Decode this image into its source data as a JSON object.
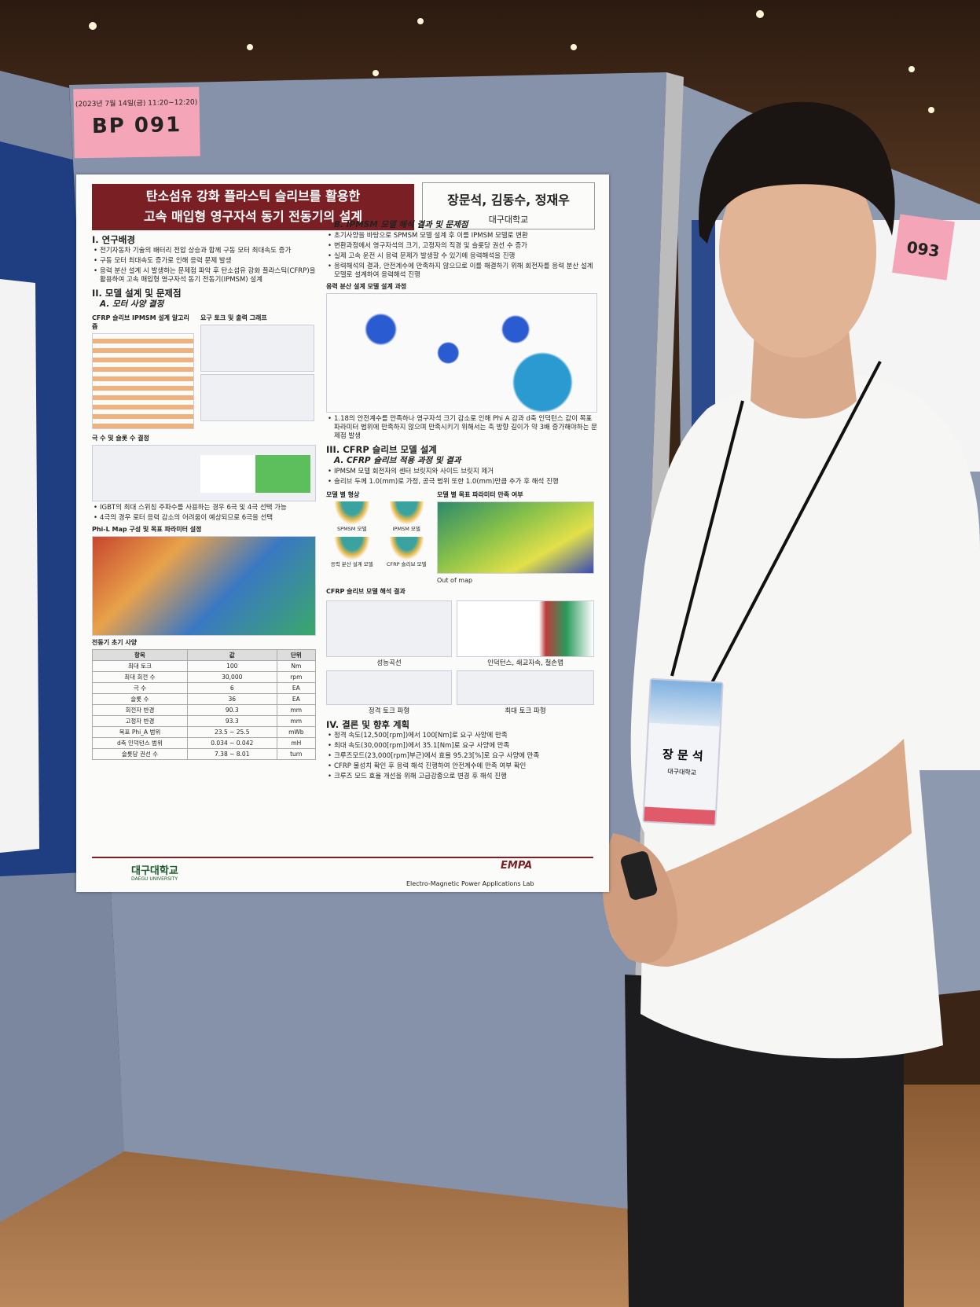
{
  "signs": {
    "left": {
      "date": "(2023년 7월 14일(금) 11:20~12:20)",
      "code": "BP 091"
    },
    "right": {
      "code": "093"
    }
  },
  "poster": {
    "title": [
      "탄소섬유 강화 플라스틱 슬리브를 활용한",
      "고속 매입형 영구자석 동기 전동기의 설계"
    ],
    "authors": "장문석, 김동수, 정재우",
    "affiliation": "대구대학교",
    "intro": {
      "heading": "I. 연구배경",
      "bullets": [
        "전기자동차 기술의 배터리 전압 상승과 함께 구동 모터 최대속도 증가",
        "구동 모터 최대속도 증가로 인해 응력 문제 발생",
        "응력 분산 설계 시 발생하는 문제점 파악 후 탄소섬유 강화 플라스틱(CFRP)을 활용하여 고속 매입형 영구자석 동기 전동기(IPMSM) 설계"
      ]
    },
    "design": {
      "heading": "II. 모델 설계 및 문제점",
      "sub": "A. 모터 사양 결정",
      "fig_algorithm": "CFRP 슬리브 IPMSM 설계 알고리즘",
      "fig_torque": "요구 토크 및 출력 그래프",
      "fig_poles": "극 수 및 슬롯 수 결정",
      "pole_bullets": [
        "IGBT의 최대 스위칭 주파수를 사용하는 경우 6극 및 4극 선택 가능",
        "4극의 경우 로터 응력 감소의 어려움이 예상되므로 6극을 선택"
      ],
      "fig_map": "Phi-L Map 구성 및 목표 파라미터 설정",
      "spec_heading": "전동기 초기 사양",
      "table_header": [
        "항목",
        "값",
        "단위"
      ],
      "table_rows": [
        [
          "최대 토크",
          "100",
          "Nm"
        ],
        [
          "최대 회전 수",
          "30,000",
          "rpm"
        ],
        [
          "극 수",
          "6",
          "EA"
        ],
        [
          "슬롯 수",
          "36",
          "EA"
        ],
        [
          "회전자 반경",
          "90.3",
          "mm"
        ],
        [
          "고정자 반경",
          "93.3",
          "mm"
        ],
        [
          "목표 Phi_A 범위",
          "23.5 ~ 25.5",
          "mWb"
        ],
        [
          "d축 인덕턴스 범위",
          "0.034 ~ 0.042",
          "mH"
        ],
        [
          "슬롯당 권선 수",
          "7.38 ~ 8.01",
          "turn"
        ]
      ]
    },
    "ipmsm": {
      "heading": "B. IPMSM 모델 해석 결과 및 문제점",
      "bullets": [
        "초기사양을 바탕으로 SPMSM 모델 설계 후 이를 IPMSM 모델로 변환",
        "변환과정에서 영구자석의 크기, 고정자의 직경 및 슬롯당 권선 수 증가",
        "실제 고속 운전 시 응력 문제가 발생할 수 있기에 응력해석을 진행",
        "응력해석의 결과, 안전계수에 만족하지 않으므로 이를 해결하기 위해 회전자를 응력 분산 설계 모델로 설계하여 응력해석 진행"
      ],
      "fig": "응력 분산 설계 모델 설계 과정",
      "after": [
        "1.18의 안전계수를 만족하나 영구자석 크기 감소로 인해 Phi A 감과 d축 인덕턴스 값이 목표 파라미터 범위에 만족하지 않으며 만족시키기 위해서는 축 방향 길이가 약 3배 증가해야하는 문제점 발생"
      ]
    },
    "cfrp": {
      "heading": "III. CFRP 슬리브 모델 설계",
      "sub": "A. CFRP 슬리브 적용 과정 및 결과",
      "bullets": [
        "IPMSM 모델 회전자의 센터 브릿지와 사이드 브릿지 제거",
        "슬리브 두께 1.0(mm)로 가정, 공극 범위 또한 1.0(mm)만큼 추가 후 해석 진행"
      ],
      "fig_shapes": "모델 별 형상",
      "fig_params": "모델 별 목표 파라미터 만족 여부",
      "models": [
        "SPMSM 모델",
        "IPMSM 모델",
        "응력 분산 설계 모델",
        "CFRP 슬리브 모델"
      ],
      "out_of_map": "Out of map",
      "fig_results": "CFRP 슬리브 모델 해석 결과",
      "captions": [
        "성능곡선",
        "인덕턴스, 쇄교자속, 철손맵",
        "정격 토크 파형",
        "최대 토크 파형"
      ]
    },
    "conclusion": {
      "heading": "IV. 결론 및 향후 계획",
      "bullets": [
        "정격 속도(12,500[rpm])에서 100[Nm]로 요구 사양에 만족",
        "최대 속도(30,000[rpm])에서 35.1[Nm]로 요구 사양에 만족",
        "크루즈모드(23,000[rpm]부근)에서 효율 95.23[%]로 요구 사양에 만족",
        "CFRP 물성치 확인 후 응력 해석 진행하여 안전계수에 만족 여부 확인",
        "크루즈 모드 효율 개선을 위해 고급강종으로 변경 후 해석 진행"
      ]
    },
    "footer": {
      "university": "대구대학교",
      "university_en": "DAEGU UNIVERSITY",
      "lab": "EMPA",
      "lab_full": "Electro-Magnetic Power Applications Lab"
    }
  },
  "badge": {
    "name": "장 문 석",
    "affiliation": "대구대학교"
  }
}
